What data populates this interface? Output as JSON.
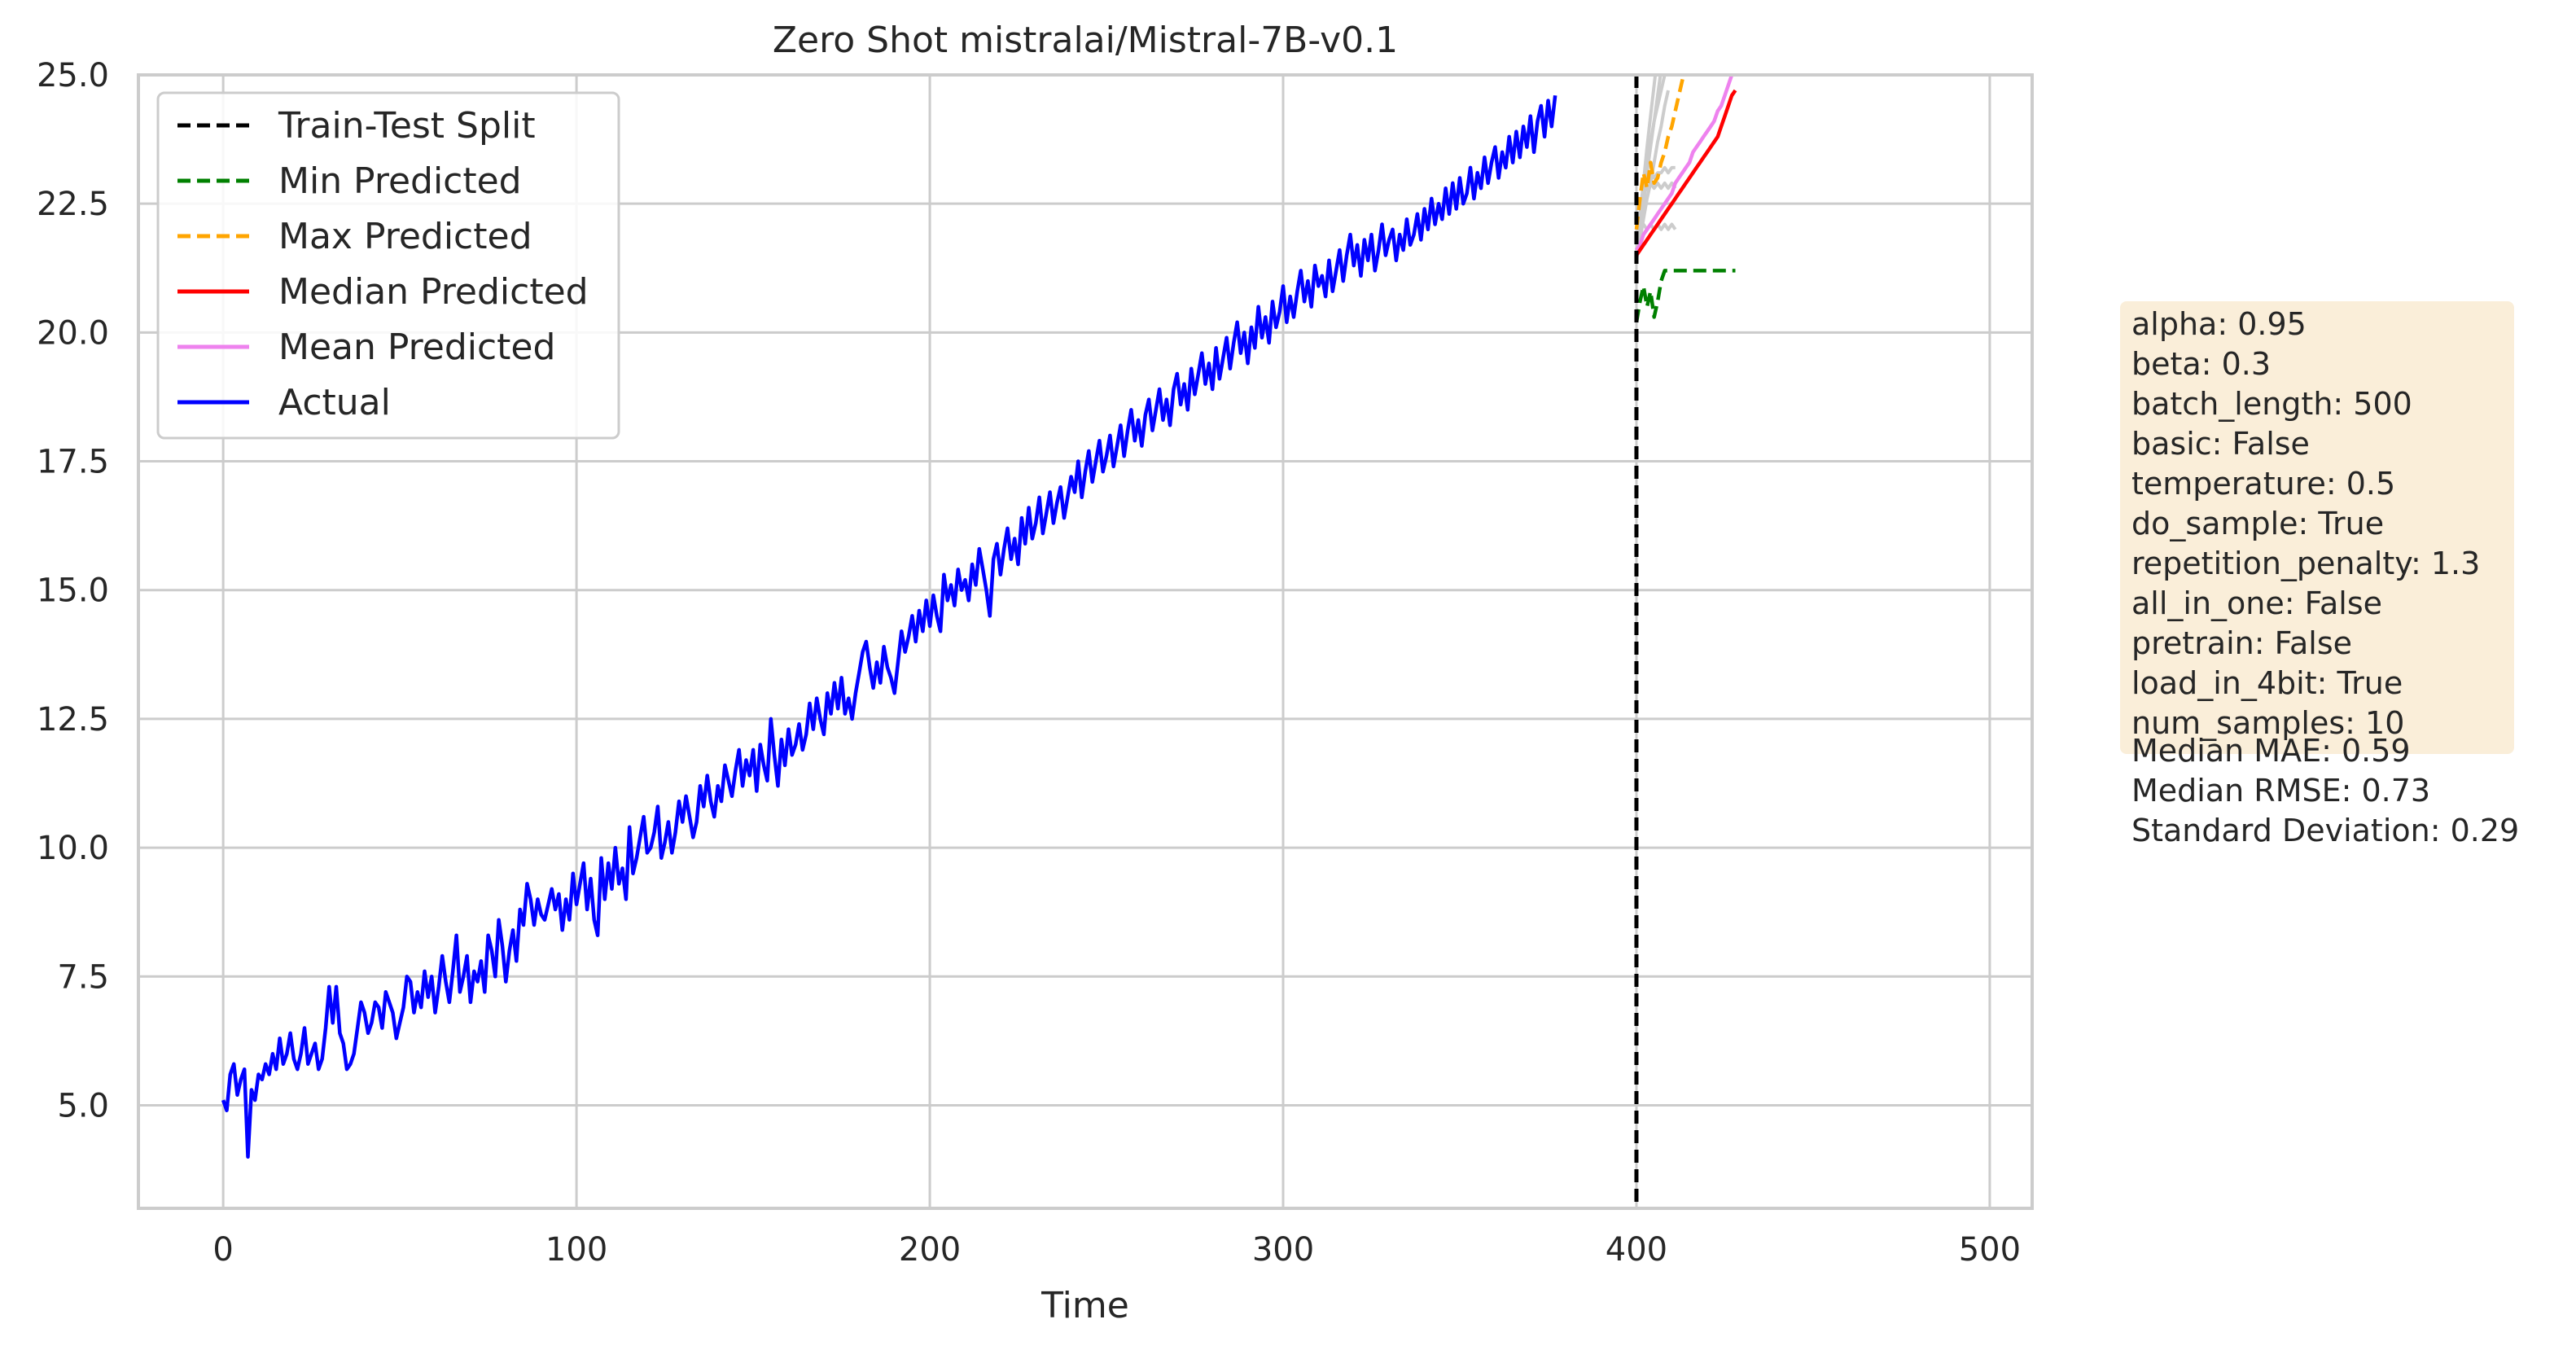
{
  "chart_data": {
    "type": "line",
    "title": "Zero Shot mistralai/Mistral-7B-v0.1",
    "xlabel": "Time",
    "ylabel": "",
    "xlim": [
      -24,
      512
    ],
    "ylim": [
      3,
      25
    ],
    "xticks": [
      0,
      100,
      200,
      300,
      400,
      500
    ],
    "yticks": [
      5.0,
      7.5,
      10.0,
      12.5,
      15.0,
      17.5,
      20.0,
      22.5,
      25.0
    ],
    "ytick_labels": [
      "5.0",
      "7.5",
      "10.0",
      "12.5",
      "15.0",
      "17.5",
      "20.0",
      "22.5",
      "25.0"
    ],
    "grid": true,
    "legend_position": "top-left",
    "split_x": 400,
    "legend": [
      {
        "label": "Train-Test Split",
        "color": "#000000",
        "style": "dashed"
      },
      {
        "label": "Min Predicted",
        "color": "#008000",
        "style": "dashed"
      },
      {
        "label": "Max Predicted",
        "color": "#ffa500",
        "style": "dashed"
      },
      {
        "label": "Median Predicted",
        "color": "#ff0000",
        "style": "solid"
      },
      {
        "label": "Mean Predicted",
        "color": "#ee82ee",
        "style": "solid"
      },
      {
        "label": "Actual",
        "color": "#0000ff",
        "style": "solid"
      }
    ],
    "actual": {
      "name": "Actual",
      "color": "#0000ff",
      "start": 0,
      "values": [
        5.1,
        4.9,
        5.6,
        5.8,
        5.2,
        5.5,
        5.7,
        4.0,
        5.3,
        5.1,
        5.6,
        5.5,
        5.8,
        5.6,
        6.0,
        5.7,
        6.3,
        5.8,
        6.0,
        6.4,
        5.9,
        5.7,
        6.0,
        6.5,
        5.8,
        6.0,
        6.2,
        5.7,
        5.9,
        6.5,
        7.3,
        6.6,
        7.3,
        6.4,
        6.2,
        5.7,
        5.8,
        6.0,
        6.5,
        7.0,
        6.8,
        6.4,
        6.6,
        7.0,
        6.9,
        6.5,
        7.2,
        7.0,
        6.8,
        6.3,
        6.6,
        6.9,
        7.5,
        7.4,
        6.8,
        7.2,
        6.9,
        7.6,
        7.1,
        7.5,
        6.8,
        7.3,
        7.9,
        7.4,
        7.0,
        7.6,
        8.3,
        7.2,
        7.5,
        7.9,
        7.0,
        7.6,
        7.4,
        7.8,
        7.2,
        8.3,
        8.0,
        7.5,
        8.6,
        8.1,
        7.4,
        8.0,
        8.4,
        7.8,
        8.8,
        8.5,
        9.3,
        9.0,
        8.5,
        9.0,
        8.7,
        8.6,
        8.9,
        9.2,
        8.8,
        9.1,
        8.4,
        9.0,
        8.6,
        9.5,
        8.9,
        9.3,
        9.7,
        8.8,
        9.4,
        8.6,
        8.3,
        9.8,
        9.0,
        9.7,
        9.2,
        10.0,
        9.3,
        9.6,
        9.0,
        10.4,
        9.5,
        9.8,
        10.2,
        10.6,
        9.9,
        10.0,
        10.3,
        10.8,
        9.8,
        10.1,
        10.5,
        9.9,
        10.3,
        10.9,
        10.5,
        11.0,
        10.6,
        10.2,
        10.5,
        11.2,
        10.8,
        11.4,
        10.9,
        10.6,
        11.2,
        10.9,
        11.6,
        11.3,
        11.0,
        11.5,
        11.9,
        11.2,
        11.7,
        11.4,
        11.9,
        11.1,
        12.0,
        11.6,
        11.3,
        12.5,
        11.8,
        11.2,
        12.1,
        11.6,
        12.3,
        11.8,
        12.0,
        12.4,
        11.9,
        12.2,
        12.8,
        12.3,
        12.9,
        12.5,
        12.2,
        13.0,
        12.6,
        13.2,
        12.7,
        13.3,
        12.6,
        12.9,
        12.5,
        13.0,
        13.4,
        13.8,
        14.0,
        13.5,
        13.1,
        13.6,
        13.2,
        13.9,
        13.5,
        13.3,
        13.0,
        13.6,
        14.2,
        13.8,
        14.1,
        14.5,
        14.0,
        14.6,
        14.2,
        14.8,
        14.3,
        14.9,
        14.5,
        14.2,
        15.3,
        14.8,
        15.1,
        14.7,
        15.4,
        15.0,
        15.2,
        14.8,
        15.5,
        15.1,
        15.8,
        15.4,
        15.0,
        14.5,
        15.6,
        15.9,
        15.3,
        15.8,
        16.2,
        15.6,
        16.0,
        15.5,
        16.4,
        15.9,
        16.6,
        16.0,
        16.3,
        16.8,
        16.1,
        16.5,
        16.9,
        16.3,
        16.7,
        17.0,
        16.4,
        16.8,
        17.2,
        16.9,
        17.5,
        16.8,
        17.3,
        17.7,
        17.1,
        17.5,
        17.9,
        17.3,
        17.6,
        18.0,
        17.4,
        17.8,
        18.2,
        17.6,
        18.1,
        18.5,
        17.9,
        18.3,
        17.8,
        18.4,
        18.7,
        18.1,
        18.5,
        18.9,
        18.3,
        18.7,
        18.2,
        18.9,
        19.2,
        18.6,
        19.0,
        18.5,
        19.3,
        18.8,
        19.2,
        19.6,
        19.0,
        19.4,
        18.9,
        19.7,
        19.1,
        19.5,
        19.9,
        19.3,
        19.8,
        20.2,
        19.6,
        20.0,
        19.4,
        20.1,
        19.7,
        20.5,
        19.9,
        20.3,
        19.8,
        20.6,
        20.1,
        20.4,
        20.9,
        20.2,
        20.7,
        20.3,
        20.8,
        21.2,
        20.6,
        21.0,
        20.5,
        21.3,
        20.9,
        21.1,
        20.7,
        21.4,
        20.8,
        21.2,
        21.6,
        21.0,
        21.5,
        21.9,
        21.3,
        21.7,
        21.1,
        21.8,
        21.4,
        21.9,
        21.2,
        21.6,
        22.1,
        21.5,
        21.8,
        22.0,
        21.4,
        21.9,
        21.6,
        22.2,
        21.7,
        21.9,
        22.3,
        21.8,
        22.4,
        22.0,
        22.6,
        22.1,
        22.5,
        22.2,
        22.8,
        22.3,
        22.9,
        22.4,
        23.0,
        22.5,
        22.7,
        23.2,
        22.6,
        23.1,
        22.8,
        23.4,
        22.9,
        23.3,
        23.6,
        23.0,
        23.5,
        23.2,
        23.8,
        23.3,
        23.9,
        23.4,
        24.0,
        23.6,
        24.2,
        23.5,
        24.1,
        24.4,
        23.8,
        24.5,
        24.0,
        24.6
      ]
    },
    "median": {
      "name": "Median Predicted",
      "color": "#ff0000",
      "start": 400,
      "values": [
        21.5,
        21.6,
        21.7,
        21.8,
        21.9,
        22.0,
        22.1,
        22.2,
        22.3,
        22.4,
        22.5,
        22.6,
        22.7,
        22.8,
        22.9,
        23.0,
        23.1,
        23.2,
        23.3,
        23.4,
        23.5,
        23.6,
        23.7,
        23.8,
        24.0,
        24.2,
        24.4,
        24.6,
        24.7
      ]
    },
    "mean": {
      "name": "Mean Predicted",
      "color": "#ee82ee",
      "start": 400,
      "values": [
        21.6,
        21.7,
        21.9,
        22.0,
        22.1,
        22.2,
        22.3,
        22.4,
        22.5,
        22.6,
        22.7,
        22.9,
        23.0,
        23.1,
        23.2,
        23.3,
        23.5,
        23.6,
        23.7,
        23.8,
        23.9,
        24.0,
        24.1,
        24.3,
        24.4,
        24.6,
        24.8,
        25.0,
        25.2
      ]
    },
    "max": {
      "name": "Max Predicted",
      "color": "#ffa500",
      "start": 400,
      "values": [
        22.0,
        22.6,
        23.1,
        22.8,
        23.3,
        22.9,
        23.0,
        23.3,
        23.5,
        23.8,
        24.0,
        24.3,
        24.6,
        24.9,
        25.2
      ]
    },
    "min": {
      "name": "Min Predicted",
      "color": "#008000",
      "start": 400,
      "values": [
        20.2,
        20.6,
        20.9,
        20.5,
        20.8,
        20.3,
        20.6,
        21.0,
        21.2,
        21.2,
        21.2,
        21.2,
        21.2,
        21.2,
        21.2,
        21.2,
        21.2,
        21.2,
        21.2,
        21.2,
        21.2,
        21.2,
        21.2,
        21.2,
        21.2,
        21.2,
        21.2,
        21.2,
        21.2
      ]
    },
    "samples": [
      {
        "color": "#cccccc",
        "start": 400,
        "values": [
          21.8,
          22.3,
          22.9,
          23.6,
          24.2,
          24.8,
          25.4
        ]
      },
      {
        "color": "#cccccc",
        "start": 400,
        "values": [
          21.5,
          22.0,
          22.6,
          23.1,
          23.6,
          24.1,
          24.6,
          25.1
        ]
      },
      {
        "color": "#cccccc",
        "start": 400,
        "values": [
          21.4,
          21.8,
          22.2,
          22.6,
          22.9,
          23.3,
          23.7,
          24.0,
          24.4,
          24.7
        ]
      },
      {
        "color": "#cccccc",
        "start": 400,
        "values": [
          21.6,
          22.0,
          22.1,
          22.0,
          22.1,
          22.0,
          22.1,
          22.0,
          22.1,
          22.0,
          22.1,
          22.0
        ]
      },
      {
        "color": "#cccccc",
        "start": 400,
        "values": [
          21.7,
          22.2,
          22.7,
          22.8,
          22.9,
          22.8,
          22.9,
          22.8,
          22.9,
          22.8,
          22.9,
          22.8
        ]
      },
      {
        "color": "#cccccc",
        "start": 400,
        "values": [
          21.5,
          22.0,
          22.5,
          23.0,
          23.1,
          23.0,
          23.1,
          23.1,
          23.2,
          23.1,
          23.2,
          23.2
        ]
      },
      {
        "color": "#cccccc",
        "start": 400,
        "values": [
          21.6,
          22.1,
          22.6,
          23.2,
          23.7,
          24.1,
          24.4,
          24.7,
          25.0
        ]
      }
    ]
  },
  "info": {
    "params": [
      "alpha: 0.95",
      "beta: 0.3",
      "batch_length: 500",
      "basic: False",
      "temperature: 0.5",
      "do_sample: True",
      "repetition_penalty: 1.3",
      "all_in_one: False",
      "pretrain: False",
      "load_in_4bit: True",
      "num_samples: 10"
    ],
    "stats": [
      "Median MAE: 0.59",
      "Median RMSE: 0.73",
      "Standard Deviation: 0.29"
    ]
  }
}
